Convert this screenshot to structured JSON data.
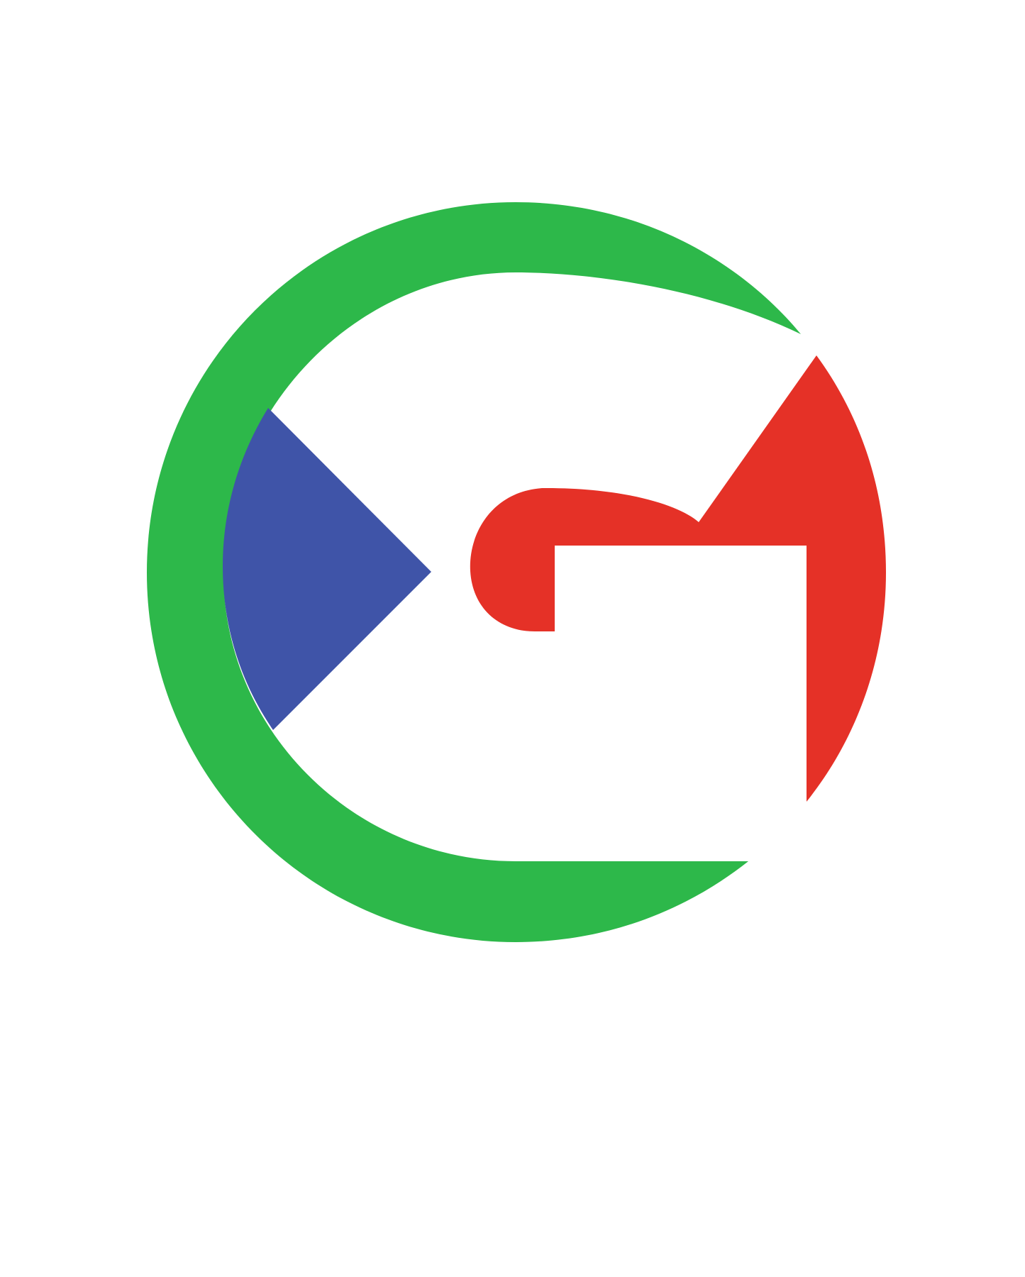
{
  "background_color": "#ffffff",
  "logo": {
    "icon": "g-letter-logo-icon",
    "colors": {
      "green": "#2db84a",
      "blue": "#3f54a8",
      "red": "#e53127"
    }
  }
}
